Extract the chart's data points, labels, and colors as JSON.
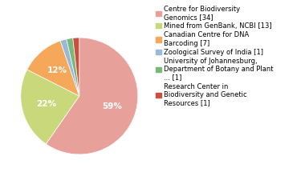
{
  "labels": [
    "Centre for Biodiversity\nGenomics [34]",
    "Mined from GenBank, NCBI [13]",
    "Canadian Centre for DNA\nBarcoding [7]",
    "Zoological Survey of India [1]",
    "University of Johannesburg,\nDepartment of Botany and Plant\n... [1]",
    "Research Center in\nBiodiversity and Genetic\nResources [1]"
  ],
  "values": [
    34,
    13,
    7,
    1,
    1,
    1
  ],
  "colors": [
    "#e8a09a",
    "#c8d87a",
    "#f5a85a",
    "#9ab8d8",
    "#7ab87a",
    "#c85040"
  ],
  "startangle": 90,
  "background_color": "#ffffff",
  "pct_fontsize": 7.5,
  "legend_fontsize": 6.0
}
